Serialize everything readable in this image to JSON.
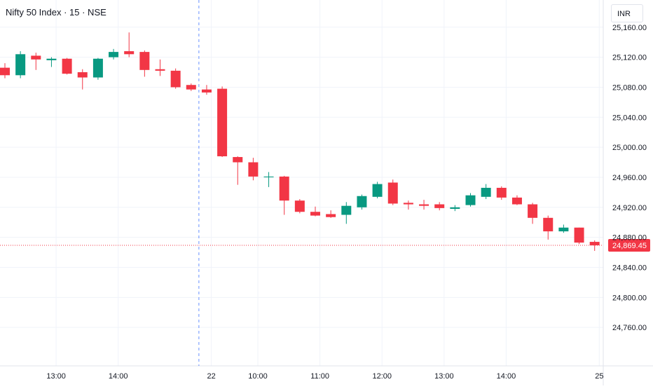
{
  "header": {
    "title": "Nifty 50 Index · 15 · NSE",
    "currency": "INR"
  },
  "chart_data": {
    "type": "candlestick",
    "ylim": [
      24720,
      25185
    ],
    "y_ticks": [
      25160,
      25120,
      25080,
      25040,
      25000,
      24960,
      24920,
      24880,
      24840,
      24800,
      24760
    ],
    "y_tick_labels": [
      "25,160.00",
      "25,120.00",
      "25,080.00",
      "25,040.00",
      "25,000.00",
      "24,960.00",
      "24,920.00",
      "24,880.00",
      "24,840.00",
      "24,800.00",
      "24,760.00"
    ],
    "x_ticks": [
      {
        "label": "13:00",
        "bar": 3.3
      },
      {
        "label": "14:00",
        "bar": 7.3
      },
      {
        "label": "22",
        "bar": 13.3
      },
      {
        "label": "10:00",
        "bar": 16.3
      },
      {
        "label": "11:00",
        "bar": 20.3
      },
      {
        "label": "12:00",
        "bar": 24.3
      },
      {
        "label": "13:00",
        "bar": 28.3
      },
      {
        "label": "14:00",
        "bar": 32.3
      },
      {
        "label": "25",
        "bar": 38.3
      }
    ],
    "session_break_bar": 12.5,
    "last_price": 24869.45,
    "last_price_label": "24,869.45",
    "colors": {
      "up": "#089981",
      "down": "#f23645",
      "grid": "#f0f3fa",
      "text": "#131722",
      "last_line": "#f23645"
    },
    "candles": [
      {
        "o": 25106,
        "h": 25112,
        "l": 25092,
        "c": 25096
      },
      {
        "o": 25096,
        "h": 25128,
        "l": 25092,
        "c": 25124
      },
      {
        "o": 25122,
        "h": 25126,
        "l": 25103,
        "c": 25117
      },
      {
        "o": 25116,
        "h": 25120,
        "l": 25107,
        "c": 25118
      },
      {
        "o": 25118,
        "h": 25119,
        "l": 25097,
        "c": 25098
      },
      {
        "o": 25100,
        "h": 25104,
        "l": 25077,
        "c": 25093
      },
      {
        "o": 25093,
        "h": 25119,
        "l": 25090,
        "c": 25118
      },
      {
        "o": 25120,
        "h": 25131,
        "l": 25117,
        "c": 25127
      },
      {
        "o": 25128,
        "h": 25153,
        "l": 25120,
        "c": 25124
      },
      {
        "o": 25127,
        "h": 25129,
        "l": 25094,
        "c": 25103
      },
      {
        "o": 25104,
        "h": 25117,
        "l": 25095,
        "c": 25102
      },
      {
        "o": 25102,
        "h": 25105,
        "l": 25078,
        "c": 25080
      },
      {
        "o": 25083,
        "h": 25085,
        "l": 25075,
        "c": 25077
      },
      {
        "o": 25077,
        "h": 25083,
        "l": 25070,
        "c": 25073
      },
      {
        "o": 25078,
        "h": 25081,
        "l": 24987,
        "c": 24988
      },
      {
        "o": 24987,
        "h": 24988,
        "l": 24950,
        "c": 24980
      },
      {
        "o": 24980,
        "h": 24986,
        "l": 24956,
        "c": 24961
      },
      {
        "o": 24960,
        "h": 24967,
        "l": 24947,
        "c": 24961
      },
      {
        "o": 24961,
        "h": 24962,
        "l": 24910,
        "c": 24929
      },
      {
        "o": 24929,
        "h": 24931,
        "l": 24912,
        "c": 24914
      },
      {
        "o": 24914,
        "h": 24921,
        "l": 24908,
        "c": 24909
      },
      {
        "o": 24911,
        "h": 24916,
        "l": 24906,
        "c": 24907
      },
      {
        "o": 24910,
        "h": 24927,
        "l": 24898,
        "c": 24922
      },
      {
        "o": 24920,
        "h": 24937,
        "l": 24917,
        "c": 24935
      },
      {
        "o": 24934,
        "h": 24954,
        "l": 24932,
        "c": 24951
      },
      {
        "o": 24953,
        "h": 24957,
        "l": 24923,
        "c": 24925
      },
      {
        "o": 24926,
        "h": 24929,
        "l": 24917,
        "c": 24924
      },
      {
        "o": 24924,
        "h": 24930,
        "l": 24917,
        "c": 24922
      },
      {
        "o": 24924,
        "h": 24927,
        "l": 24916,
        "c": 24919
      },
      {
        "o": 24918,
        "h": 24923,
        "l": 24915,
        "c": 24920
      },
      {
        "o": 24923,
        "h": 24939,
        "l": 24921,
        "c": 24936
      },
      {
        "o": 24934,
        "h": 24951,
        "l": 24931,
        "c": 24946
      },
      {
        "o": 24946,
        "h": 24948,
        "l": 24930,
        "c": 24933
      },
      {
        "o": 24933,
        "h": 24936,
        "l": 24923,
        "c": 24924
      },
      {
        "o": 24924,
        "h": 24926,
        "l": 24898,
        "c": 24906
      },
      {
        "o": 24906,
        "h": 24909,
        "l": 24877,
        "c": 24888
      },
      {
        "o": 24888,
        "h": 24897,
        "l": 24886,
        "c": 24893
      },
      {
        "o": 24893,
        "h": 24893,
        "l": 24871,
        "c": 24873
      },
      {
        "o": 24874,
        "h": 24876,
        "l": 24862,
        "c": 24869.45
      }
    ]
  }
}
